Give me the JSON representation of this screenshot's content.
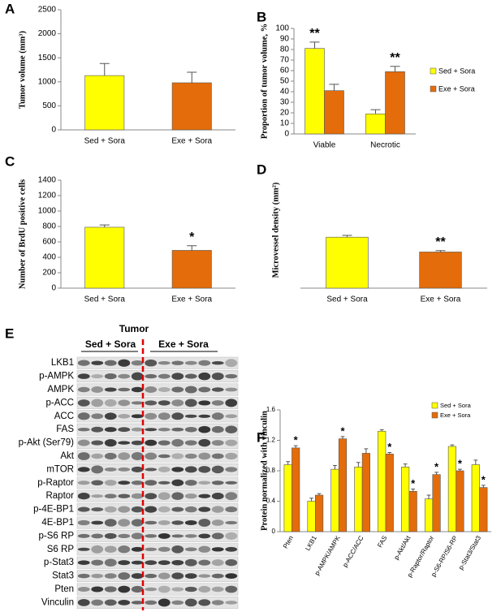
{
  "chart_data": [
    {
      "type": "bar",
      "panel": "A",
      "ylabel": "Tumor volume (mm³)",
      "categories": [
        "Sed + Sora",
        "Exe + Sora"
      ],
      "values": [
        1130,
        980
      ],
      "errors": [
        250,
        220
      ],
      "colors": [
        "#ffff00",
        "#e46c0a"
      ],
      "ylim": [
        0,
        2500
      ],
      "yticks": [
        0,
        500,
        1000,
        1500,
        2000,
        2500
      ]
    },
    {
      "type": "bar",
      "panel": "B",
      "ylabel": "Proportion of tumor volume, %",
      "categories": [
        "Viable",
        "Necrotic"
      ],
      "series": [
        {
          "name": "Sed + Sora",
          "color": "#ffff00",
          "values": [
            81,
            19
          ],
          "errors": [
            6,
            4
          ],
          "significance": [
            "**",
            null
          ]
        },
        {
          "name": "Exe + Sora",
          "color": "#e46c0a",
          "values": [
            41,
            59
          ],
          "errors": [
            6,
            5
          ],
          "significance": [
            null,
            "**"
          ]
        }
      ],
      "ylim": [
        0,
        100
      ],
      "yticks": [
        0,
        10,
        20,
        30,
        40,
        50,
        60,
        70,
        80,
        90,
        100
      ]
    },
    {
      "type": "bar",
      "panel": "C",
      "ylabel": "Number of BrdU positive cells",
      "categories": [
        "Sed + Sora",
        "Exe + Sora"
      ],
      "values": [
        790,
        490
      ],
      "errors": [
        30,
        60
      ],
      "significance": [
        null,
        "*"
      ],
      "colors": [
        "#ffff00",
        "#e46c0a"
      ],
      "ylim": [
        0,
        1400
      ],
      "yticks": [
        0,
        200,
        400,
        600,
        800,
        1000,
        1200,
        1400
      ]
    },
    {
      "type": "bar",
      "panel": "D",
      "ylabel": "Microvessel density (mm²)",
      "categories": [
        "Sed + Sora",
        "Exe + Sora"
      ],
      "values": [
        43,
        30.5
      ],
      "errors": [
        1.5,
        1.2
      ],
      "significance": [
        null,
        "**"
      ],
      "colors": [
        "#ffff00",
        "#e46c0a"
      ]
    },
    {
      "type": "bar",
      "panel": "F",
      "ylabel": "Protein normalized with vinculin",
      "categories": [
        "Pten",
        "LKB1",
        "p-AMPK/AMPK",
        "p-ACC/ACC",
        "FAS",
        "p-Akt/Akt",
        "p-Raptor/Raptor",
        "p-S6-RP/S6-RP",
        "p-Stat3/Stat3"
      ],
      "series": [
        {
          "name": "Sed + Sora",
          "color": "#ffff00",
          "values": [
            0.88,
            0.4,
            0.82,
            0.85,
            1.32,
            0.85,
            0.43,
            1.12,
            0.88
          ],
          "errors": [
            0.04,
            0.04,
            0.05,
            0.06,
            0.02,
            0.04,
            0.05,
            0.02,
            0.06
          ],
          "significance": [
            null,
            null,
            null,
            null,
            null,
            null,
            null,
            null,
            null
          ]
        },
        {
          "name": "Exe + Sora",
          "color": "#e46c0a",
          "values": [
            1.1,
            0.48,
            1.22,
            1.03,
            1.02,
            0.53,
            0.75,
            0.8,
            0.58
          ],
          "errors": [
            0.03,
            0.02,
            0.03,
            0.06,
            0.02,
            0.03,
            0.03,
            0.02,
            0.03
          ],
          "significance": [
            "*",
            null,
            "*",
            null,
            "*",
            "*",
            "*",
            "*",
            "*"
          ]
        }
      ],
      "ylim": [
        0,
        1.6
      ],
      "yticks": [
        0,
        0.4,
        0.8,
        1.2,
        1.6
      ]
    }
  ],
  "blot": {
    "panel": "E",
    "title": "Tumor",
    "groups": [
      "Sed + Sora",
      "Exe + Sora"
    ],
    "rows": [
      "LKB1",
      "p-AMPK",
      "AMPK",
      "p-ACC",
      "ACC",
      "FAS",
      "p-Akt (Ser79)",
      "Akt",
      "mTOR",
      "p-Raptor",
      "Raptor",
      "p-4E-BP1",
      "4E-BP1",
      "p-S6 RP",
      "S6 RP",
      "p-Stat3",
      "Stat3",
      "Pten",
      "Vinculin"
    ]
  }
}
